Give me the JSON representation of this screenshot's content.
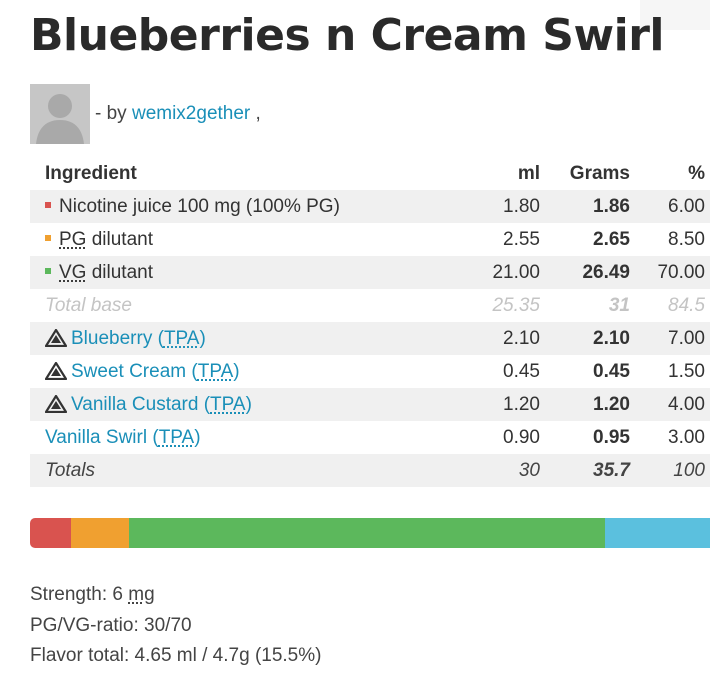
{
  "title": "Blueberries n Cream Swirl",
  "author": {
    "prefix": "- by",
    "name": "wemix2gether",
    "suffix": ","
  },
  "table": {
    "headers": {
      "ingredient": "Ingredient",
      "ml": "ml",
      "grams": "Grams",
      "percent": "%"
    },
    "base_rows": [
      {
        "name": "Nicotine juice 100 mg (100% PG)",
        "dotted": "",
        "rest": "",
        "ml": "1.80",
        "grams": "1.86",
        "percent": "6.00",
        "color": "#d9534f"
      },
      {
        "name": "",
        "dotted": "PG",
        "rest": " dilutant",
        "ml": "2.55",
        "grams": "2.65",
        "percent": "8.50",
        "color": "#f0a030"
      },
      {
        "name": "",
        "dotted": "VG",
        "rest": " dilutant",
        "ml": "21.00",
        "grams": "26.49",
        "percent": "70.00",
        "color": "#5cb85c"
      }
    ],
    "total_base": {
      "label": "Total base",
      "ml": "25.35",
      "grams": "31",
      "percent": "84.5"
    },
    "flavor_rows": [
      {
        "warning": true,
        "name": "Blueberry",
        "vendor": "TPA",
        "ml": "2.10",
        "grams": "2.10",
        "percent": "7.00"
      },
      {
        "warning": true,
        "name": "Sweet Cream",
        "vendor": "TPA",
        "ml": "0.45",
        "grams": "0.45",
        "percent": "1.50"
      },
      {
        "warning": true,
        "name": "Vanilla Custard",
        "vendor": "TPA",
        "ml": "1.20",
        "grams": "1.20",
        "percent": "4.00"
      },
      {
        "warning": false,
        "name": "Vanilla Swirl",
        "vendor": "TPA",
        "ml": "0.90",
        "grams": "0.95",
        "percent": "3.00"
      }
    ],
    "totals": {
      "label": "Totals",
      "ml": "30",
      "grams": "35.7",
      "percent": "100"
    }
  },
  "composition_bar": [
    {
      "name": "nicotine",
      "percent": 6.0,
      "color": "#d9534f"
    },
    {
      "name": "pg",
      "percent": 8.5,
      "color": "#f0a030"
    },
    {
      "name": "vg",
      "percent": 70.0,
      "color": "#5cb85c"
    },
    {
      "name": "flavor",
      "percent": 15.5,
      "color": "#5bc0de"
    }
  ],
  "summary": {
    "strength_label": "Strength:",
    "strength_value": "6",
    "strength_unit": "mg",
    "ratio": "PG/VG-ratio: 30/70",
    "flavor_total": "Flavor total: 4.65 ml / 4.7g (15.5%)"
  }
}
